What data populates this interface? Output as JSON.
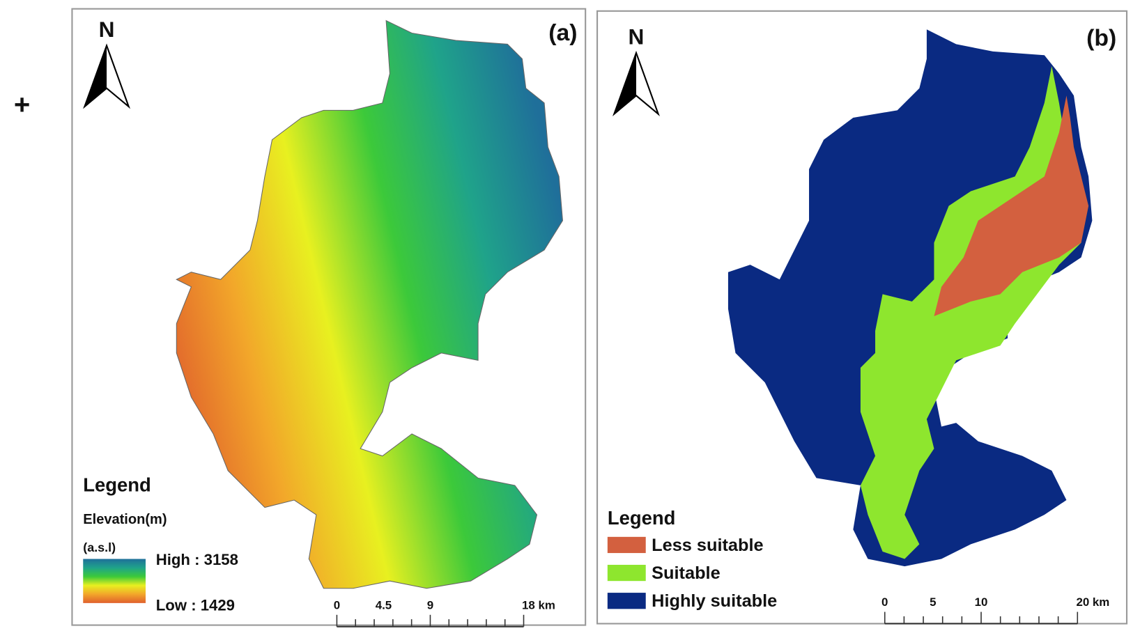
{
  "plus": "+",
  "panels": [
    {
      "label": "(a)",
      "north": "N",
      "legend": {
        "title": "Legend",
        "subtitle": [
          "Elevation(m)",
          "(a.s.l)"
        ],
        "high": "High : 3158",
        "low": "Low : 1429",
        "colors": [
          "#1f6f9a",
          "#1fa38a",
          "#3cc93a",
          "#e8f020",
          "#f2a62a",
          "#e0602c"
        ]
      },
      "scale": [
        "0",
        "4.5",
        "9",
        "18 km"
      ]
    },
    {
      "label": "(b)",
      "north": "N",
      "legend": {
        "title": "Legend",
        "items": [
          {
            "label": "Less suitable",
            "color": "#d3603f"
          },
          {
            "label": "Suitable",
            "color": "#8ee62e"
          },
          {
            "label": "Highly suitable",
            "color": "#0a2a82"
          }
        ]
      },
      "scale": [
        "0",
        "5",
        "10",
        "20 km"
      ]
    }
  ]
}
